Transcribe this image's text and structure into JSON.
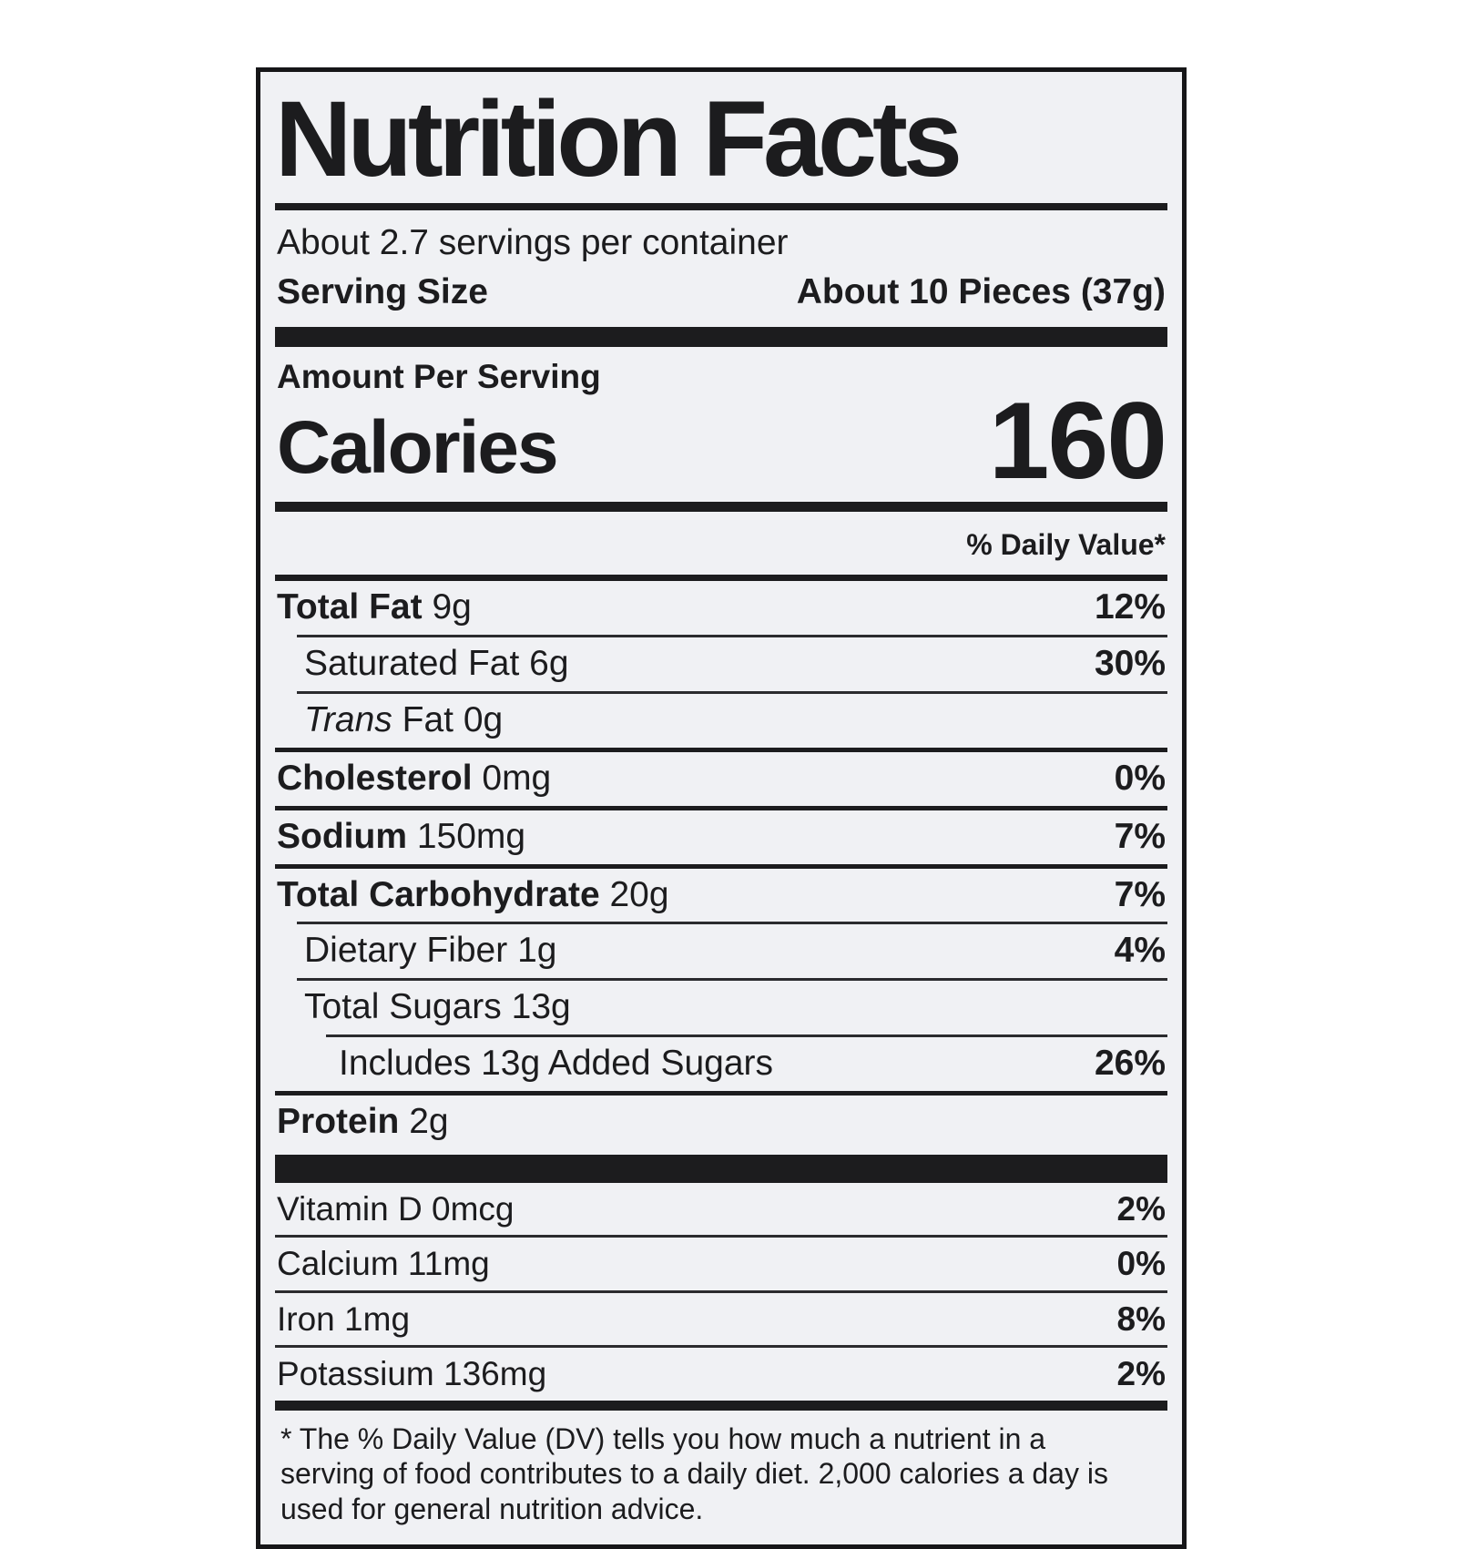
{
  "colors": {
    "label_background": "#f0f1f4",
    "ink": "#1c1c1e",
    "page_background": "#ffffff"
  },
  "label": {
    "title": "Nutrition Facts",
    "servings_per_container": "About 2.7 servings per container",
    "serving_size": {
      "label": "Serving Size",
      "value": "About 10 Pieces (37g)"
    },
    "amount_per_serving": "Amount Per Serving",
    "calories": {
      "label": "Calories",
      "value": "160"
    },
    "daily_value_header": "% Daily Value*",
    "nutrients": [
      {
        "name": "Total Fat",
        "amount": "9g",
        "dv": "12%",
        "bold": true,
        "italic": false,
        "indent": 0,
        "sep": "none",
        "sep_indent": 0
      },
      {
        "name": "Saturated Fat",
        "amount": "6g",
        "dv": "30%",
        "bold": false,
        "italic": false,
        "indent": 1,
        "sep": "hair",
        "sep_indent": 1
      },
      {
        "name": "Trans",
        "name2": "Fat",
        "amount": "0g",
        "dv": "",
        "bold": false,
        "italic": true,
        "indent": 1,
        "sep": "hair",
        "sep_indent": 1
      },
      {
        "name": "Cholesterol",
        "amount": "0mg",
        "dv": "0%",
        "bold": true,
        "italic": false,
        "indent": 0,
        "sep": "med",
        "sep_indent": 0
      },
      {
        "name": "Sodium",
        "amount": "150mg",
        "dv": "7%",
        "bold": true,
        "italic": false,
        "indent": 0,
        "sep": "med",
        "sep_indent": 0
      },
      {
        "name": "Total Carbohydrate",
        "amount": "20g",
        "dv": "7%",
        "bold": true,
        "italic": false,
        "indent": 0,
        "sep": "med",
        "sep_indent": 0
      },
      {
        "name": "Dietary Fiber",
        "amount": "1g",
        "dv": "4%",
        "bold": false,
        "italic": false,
        "indent": 1,
        "sep": "hair",
        "sep_indent": 1
      },
      {
        "name": "Total Sugars",
        "amount": "13g",
        "dv": "",
        "bold": false,
        "italic": false,
        "indent": 1,
        "sep": "hair",
        "sep_indent": 1
      },
      {
        "name": "Includes 13g Added Sugars",
        "amount": "",
        "dv": "26%",
        "bold": false,
        "italic": false,
        "indent": 2,
        "sep": "hair",
        "sep_indent": 2
      },
      {
        "name": "Protein",
        "amount": "2g",
        "dv": "",
        "bold": true,
        "italic": false,
        "indent": 0,
        "sep": "med",
        "sep_indent": 0
      }
    ],
    "micronutrients": [
      {
        "name": "Vitamin D",
        "amount": "0mcg",
        "dv": "2%",
        "sep": "none"
      },
      {
        "name": "Calcium",
        "amount": "11mg",
        "dv": "0%",
        "sep": "hair"
      },
      {
        "name": "Iron",
        "amount": "1mg",
        "dv": "8%",
        "sep": "hair"
      },
      {
        "name": "Potassium",
        "amount": "136mg",
        "dv": "2%",
        "sep": "hair"
      }
    ],
    "footnote": "* The % Daily Value (DV) tells you how much a nutrient in a serving of food contributes to a daily diet. 2,000 calories a day is used for general nutrition advice."
  }
}
